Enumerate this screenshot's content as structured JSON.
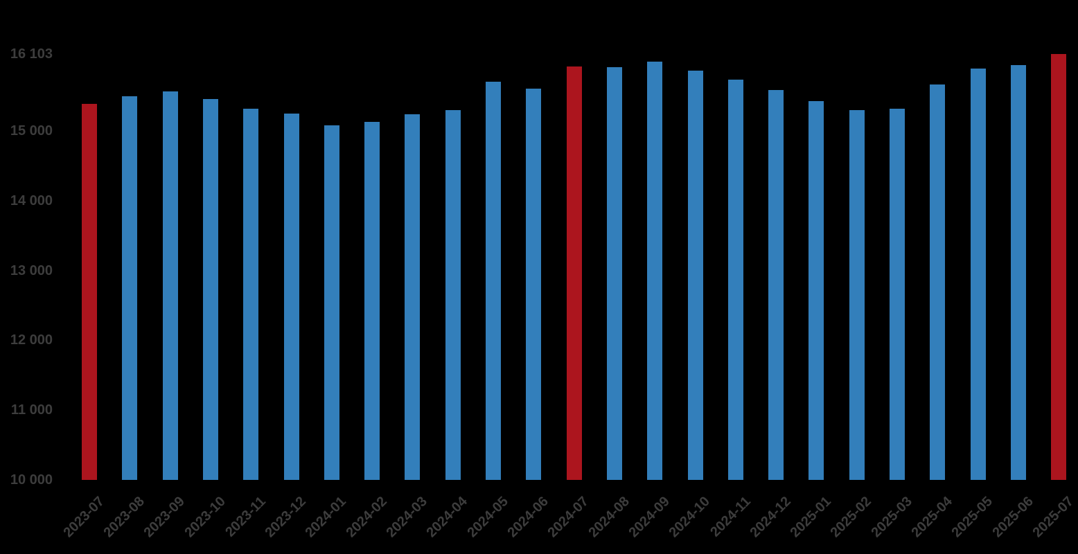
{
  "colors": {
    "background": "#000000",
    "bar_default": "#337FBB",
    "bar_highlight": "#AC151E",
    "axis_text": "#3D3D3D"
  },
  "chart_data": {
    "type": "bar",
    "title": "",
    "xlabel": "",
    "ylabel": "",
    "grid": false,
    "legend": false,
    "ylim": [
      10000,
      16103
    ],
    "categories": [
      "2023-07",
      "2023-08",
      "2023-09",
      "2023-10",
      "2023-11",
      "2023-12",
      "2024-01",
      "2024-02",
      "2024-03",
      "2024-04",
      "2024-05",
      "2024-06",
      "2024-07",
      "2024-08",
      "2024-09",
      "2024-10",
      "2024-11",
      "2024-12",
      "2025-01",
      "2025-02",
      "2025-03",
      "2025-04",
      "2025-05",
      "2025-06",
      "2025-07"
    ],
    "values": [
      15390,
      15500,
      15570,
      15460,
      15320,
      15250,
      15080,
      15130,
      15240,
      15300,
      15705,
      15610,
      15920,
      15910,
      15990,
      15865,
      15735,
      15590,
      15425,
      15300,
      15320,
      15665,
      15895,
      15940,
      16103
    ],
    "highlighted_categories": [
      "2023-07",
      "2024-07",
      "2025-07"
    ],
    "y_ticks": [
      {
        "label": "16 103",
        "value": 16103
      },
      {
        "label": "15 000",
        "value": 15000
      },
      {
        "label": "14 000",
        "value": 14000
      },
      {
        "label": "13 000",
        "value": 13000
      },
      {
        "label": "12 000",
        "value": 12000
      },
      {
        "label": "11 000",
        "value": 11000
      },
      {
        "label": "10 000",
        "value": 10000
      }
    ]
  }
}
